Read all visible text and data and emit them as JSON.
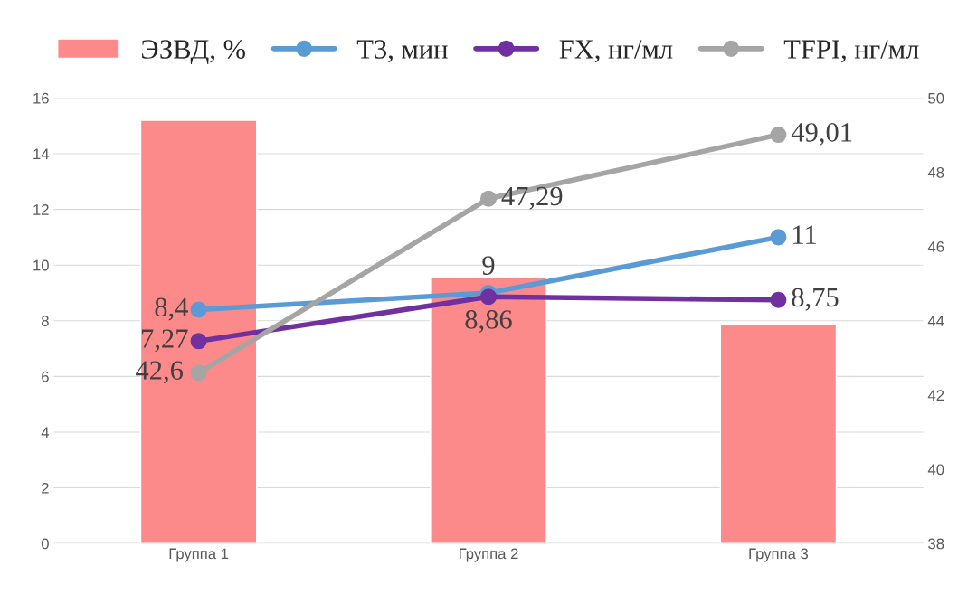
{
  "chart_data": {
    "type": "bar",
    "categories": [
      "Группа 1",
      "Группа 2",
      "Группа 3"
    ],
    "series": [
      {
        "name": "ЭЗВД, %",
        "color": "#fd8a8a",
        "values": [
          15.2,
          9.55,
          7.85
        ]
      },
      {
        "name": "T3, мин",
        "type": "line",
        "color": "#5b9bd5",
        "values": [
          8.4,
          9,
          11
        ],
        "value_labels": [
          "8,4",
          "9",
          "11"
        ]
      },
      {
        "name": "FX, нг/мл",
        "type": "line",
        "color": "#7030a0",
        "values": [
          7.27,
          8.86,
          8.75
        ],
        "value_labels": [
          "7,27",
          "8,86",
          "8,75"
        ]
      },
      {
        "name": "TFPI, нг/мл",
        "type": "line",
        "color": "#a5a5a5",
        "axis": "y2",
        "values": [
          42.6,
          47.29,
          49.01
        ],
        "value_labels": [
          "42,6",
          "47,29",
          "49,01"
        ]
      }
    ],
    "ylim": [
      0,
      16
    ],
    "yticks": [
      0,
      2,
      4,
      6,
      8,
      10,
      12,
      14,
      16
    ],
    "y2lim": [
      38,
      50
    ],
    "y2ticks": [
      38,
      40,
      42,
      44,
      46,
      48,
      50
    ],
    "grid": "y",
    "legend": "top",
    "marker": "circle",
    "line_style": "solid"
  }
}
